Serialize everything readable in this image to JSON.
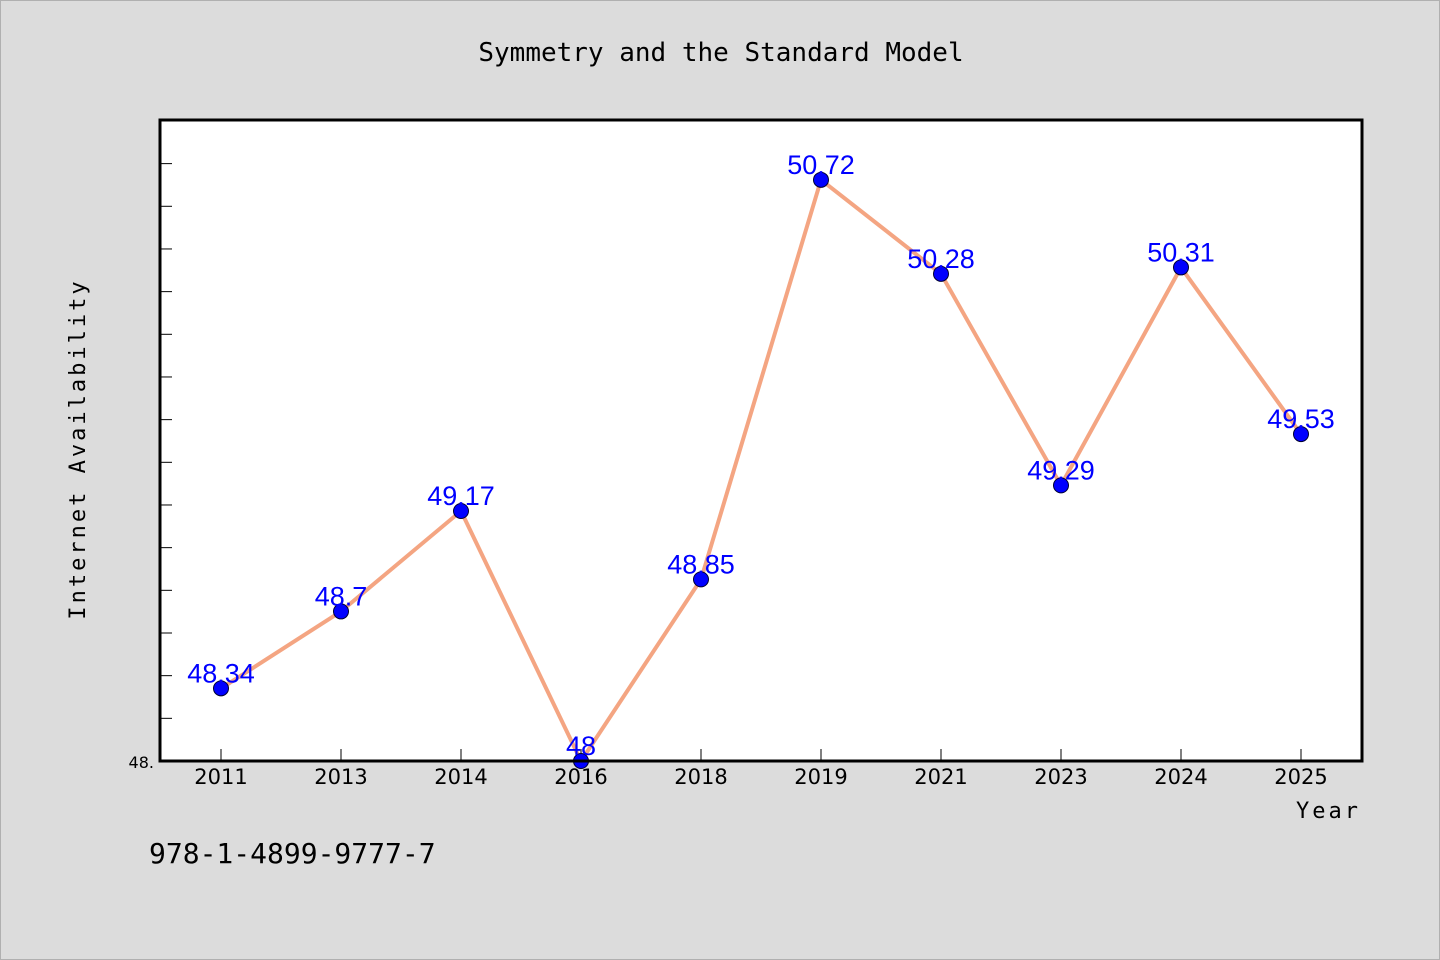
{
  "chart_data": {
    "type": "line",
    "title": "Symmetry and the Standard Model",
    "xlabel": "Year",
    "ylabel": "Internet Availability",
    "categories": [
      "2011",
      "2013",
      "2014",
      "2016",
      "2018",
      "2019",
      "2021",
      "2023",
      "2024",
      "2025"
    ],
    "series": [
      {
        "values": [
          48.34,
          48.7,
          49.17,
          48,
          48.85,
          50.72,
          50.28,
          49.29,
          50.31,
          49.53
        ],
        "labels": [
          "48.34",
          "48.7",
          "49.17",
          "48",
          "48.85",
          "50.72",
          "50.28",
          "49.29",
          "50.31",
          "49.53"
        ],
        "line_color": "#f4a582",
        "marker_color": "#0000ff"
      }
    ],
    "ylim": [
      48,
      51
    ],
    "ytick_labels": [
      "48."
    ],
    "grid": false,
    "legend": "none",
    "label_color": "#0000ff"
  },
  "footer": {
    "isbn": "978-1-4899-9777-7"
  }
}
